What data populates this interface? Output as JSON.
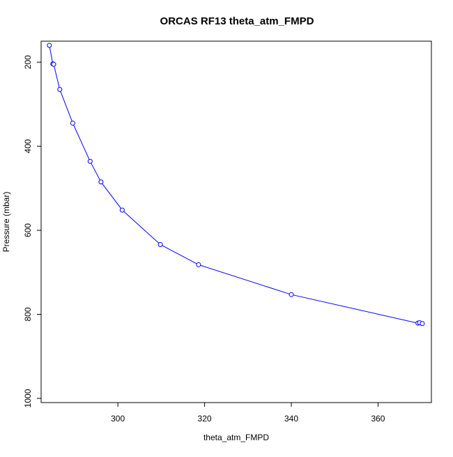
{
  "chart_data": {
    "type": "line",
    "title": "ORCAS RF13 theta_atm_FMPD",
    "xlabel": "theta_atm_FMPD",
    "ylabel": "Pressure (mbar)",
    "xlim": [
      282.3,
      372.3
    ],
    "ylim": [
      150,
      1010
    ],
    "y_reversed": true,
    "x_ticks": [
      "300",
      "320",
      "340",
      "360"
    ],
    "y_ticks": [
      "200",
      "400",
      "600",
      "800",
      "1000"
    ],
    "grid": false,
    "legend": "none",
    "series": [
      {
        "color": "#0000ff",
        "marker": "open-circle",
        "points": [
          {
            "x": 284.2,
            "y": 160
          },
          {
            "x": 285.0,
            "y": 204
          },
          {
            "x": 285.2,
            "y": 205
          },
          {
            "x": 286.6,
            "y": 265
          },
          {
            "x": 289.6,
            "y": 345
          },
          {
            "x": 293.6,
            "y": 436
          },
          {
            "x": 296.1,
            "y": 485
          },
          {
            "x": 301.0,
            "y": 552
          },
          {
            "x": 309.8,
            "y": 634
          },
          {
            "x": 318.6,
            "y": 682
          },
          {
            "x": 340.0,
            "y": 753
          },
          {
            "x": 369.2,
            "y": 821
          },
          {
            "x": 369.6,
            "y": 820
          },
          {
            "x": 370.2,
            "y": 822
          }
        ]
      }
    ]
  }
}
